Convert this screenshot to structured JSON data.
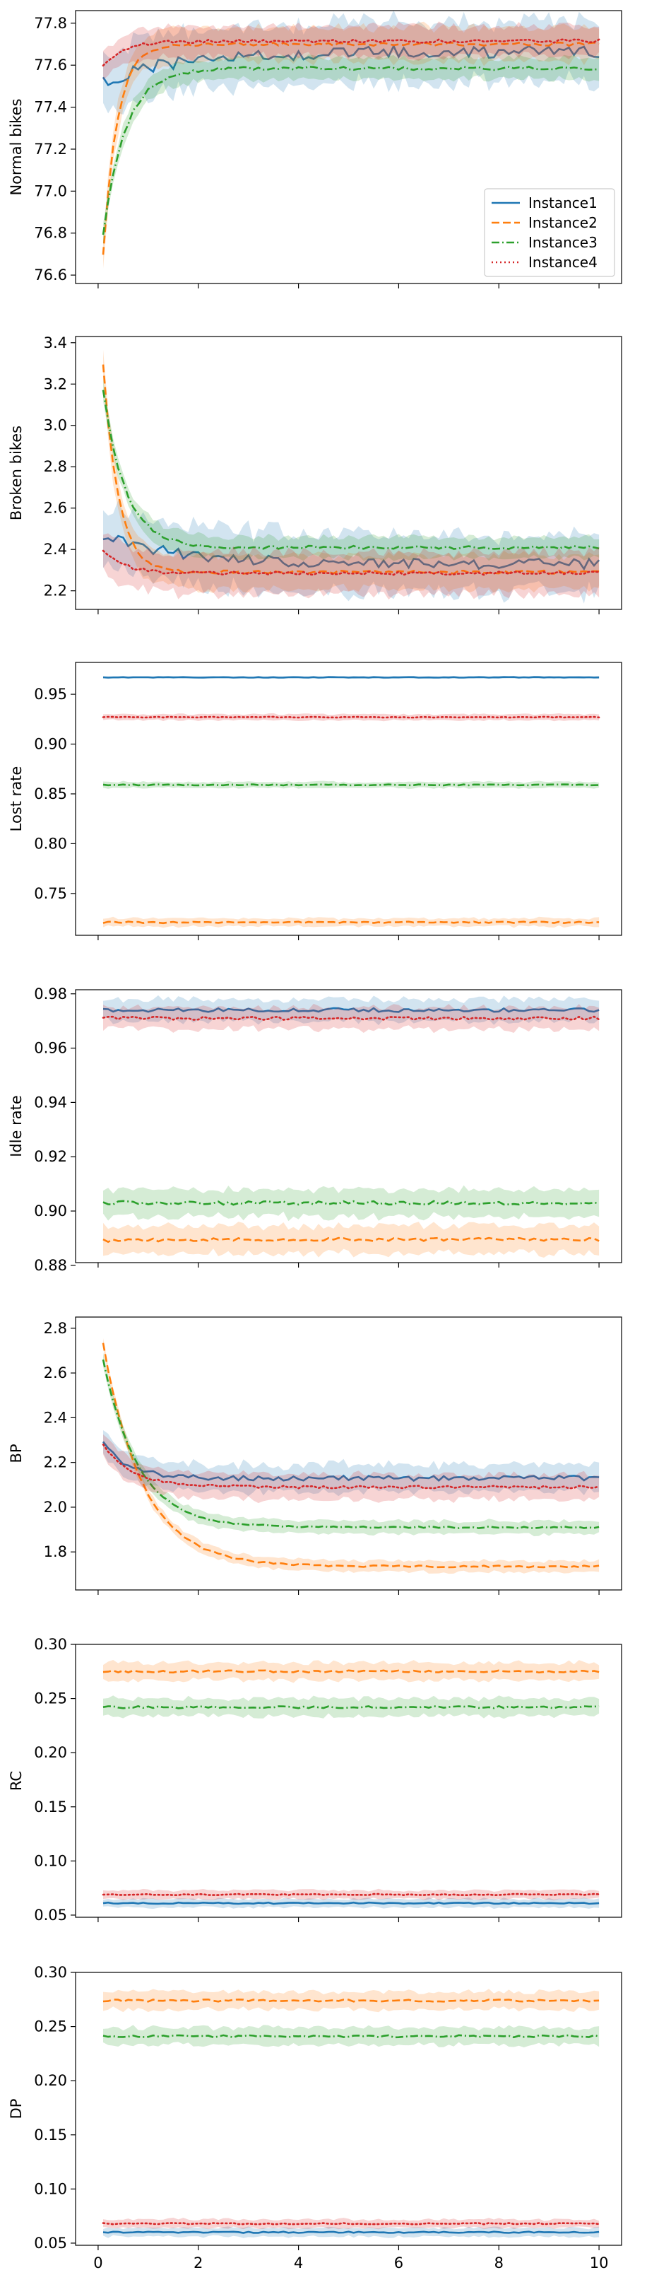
{
  "series_styles": [
    {
      "name": "Instance1",
      "color": "#1f77b4",
      "dash": "solid"
    },
    {
      "name": "Instance2",
      "color": "#ff7f0e",
      "dash": "dashed"
    },
    {
      "name": "Instance3",
      "color": "#2ca02c",
      "dash": "dashdot"
    },
    {
      "name": "Instance4",
      "color": "#d62728",
      "dash": "dotted"
    }
  ],
  "x_ticks": [
    "0",
    "2",
    "4",
    "6",
    "8",
    "10"
  ],
  "chart_data": [
    {
      "type": "line",
      "ylabel": "Normal bikes",
      "xlim": [
        0,
        10
      ],
      "ylim": [
        76.56,
        77.86
      ],
      "yticks": [
        "76.6",
        "76.8",
        "77.0",
        "77.2",
        "77.4",
        "77.6",
        "77.8"
      ],
      "show_xtick_labels": false,
      "legend": "bottom-right",
      "series": [
        {
          "name": "Instance1",
          "start": 77.52,
          "plateau": 77.665,
          "tau": 1.5,
          "band": 0.14,
          "noise": 0.03
        },
        {
          "name": "Instance2",
          "start": 76.7,
          "plateau": 77.7,
          "tau": 0.28,
          "band": 0.08,
          "noise": 0.008
        },
        {
          "name": "Instance3",
          "start": 76.8,
          "plateau": 77.585,
          "tau": 0.45,
          "band": 0.05,
          "noise": 0.008
        },
        {
          "name": "Instance4",
          "start": 77.6,
          "plateau": 77.715,
          "tau": 0.4,
          "band": 0.07,
          "noise": 0.008
        }
      ]
    },
    {
      "type": "line",
      "ylabel": "Broken bikes",
      "xlim": [
        0,
        10
      ],
      "ylim": [
        2.11,
        3.43
      ],
      "yticks": [
        "2.2",
        "2.4",
        "2.6",
        "2.8",
        "3.0",
        "3.2",
        "3.4"
      ],
      "show_xtick_labels": false,
      "series": [
        {
          "name": "Instance1",
          "start": 2.47,
          "plateau": 2.33,
          "tau": 1.5,
          "band": 0.14,
          "noise": 0.025
        },
        {
          "name": "Instance2",
          "start": 3.3,
          "plateau": 2.29,
          "tau": 0.3,
          "band": 0.08,
          "noise": 0.008
        },
        {
          "name": "Instance3",
          "start": 3.17,
          "plateau": 2.41,
          "tau": 0.45,
          "band": 0.05,
          "noise": 0.008
        },
        {
          "name": "Instance4",
          "start": 2.4,
          "plateau": 2.285,
          "tau": 0.4,
          "band": 0.1,
          "noise": 0.008
        }
      ]
    },
    {
      "type": "line",
      "ylabel": "Lost rate",
      "xlim": [
        0,
        10
      ],
      "ylim": [
        0.708,
        0.982
      ],
      "yticks": [
        "0.75",
        "0.80",
        "0.85",
        "0.90",
        "0.95"
      ],
      "show_xtick_labels": false,
      "series": [
        {
          "name": "Instance1",
          "start": 0.967,
          "plateau": 0.967,
          "tau": 1,
          "band": 0.001,
          "noise": 0.0003
        },
        {
          "name": "Instance2",
          "start": 0.721,
          "plateau": 0.721,
          "tau": 1,
          "band": 0.004,
          "noise": 0.0008
        },
        {
          "name": "Instance3",
          "start": 0.859,
          "plateau": 0.859,
          "tau": 1,
          "band": 0.003,
          "noise": 0.0005
        },
        {
          "name": "Instance4",
          "start": 0.927,
          "plateau": 0.927,
          "tau": 1,
          "band": 0.003,
          "noise": 0.0004
        }
      ]
    },
    {
      "type": "line",
      "ylabel": "Idle rate",
      "xlim": [
        0,
        10
      ],
      "ylim": [
        0.881,
        0.9815
      ],
      "yticks": [
        "0.88",
        "0.90",
        "0.92",
        "0.94",
        "0.96",
        "0.98"
      ],
      "show_xtick_labels": false,
      "series": [
        {
          "name": "Instance1",
          "start": 0.974,
          "plateau": 0.974,
          "tau": 1,
          "band": 0.004,
          "noise": 0.0007
        },
        {
          "name": "Instance2",
          "start": 0.889,
          "plateau": 0.8895,
          "tau": 1,
          "band": 0.005,
          "noise": 0.0006
        },
        {
          "name": "Instance3",
          "start": 0.903,
          "plateau": 0.903,
          "tau": 1,
          "band": 0.005,
          "noise": 0.0007
        },
        {
          "name": "Instance4",
          "start": 0.971,
          "plateau": 0.971,
          "tau": 1,
          "band": 0.004,
          "noise": 0.0006
        }
      ]
    },
    {
      "type": "line",
      "ylabel": "BP",
      "xlim": [
        0,
        10
      ],
      "ylim": [
        1.63,
        2.85
      ],
      "yticks": [
        "1.8",
        "2.0",
        "2.2",
        "2.4",
        "2.6",
        "2.8"
      ],
      "show_xtick_labels": false,
      "series": [
        {
          "name": "Instance1",
          "start": 2.29,
          "plateau": 2.13,
          "tau": 0.5,
          "band": 0.06,
          "noise": 0.012
        },
        {
          "name": "Instance2",
          "start": 2.73,
          "plateau": 1.735,
          "tau": 0.8,
          "band": 0.025,
          "noise": 0.004
        },
        {
          "name": "Instance3",
          "start": 2.66,
          "plateau": 1.91,
          "tau": 0.7,
          "band": 0.03,
          "noise": 0.004
        },
        {
          "name": "Instance4",
          "start": 2.28,
          "plateau": 2.09,
          "tau": 0.6,
          "band": 0.055,
          "noise": 0.006
        }
      ]
    },
    {
      "type": "line",
      "ylabel": "RC",
      "xlim": [
        0,
        10
      ],
      "ylim": [
        0.048,
        0.3
      ],
      "yticks": [
        "0.05",
        "0.10",
        "0.15",
        "0.20",
        "0.25",
        "0.30"
      ],
      "show_xtick_labels": false,
      "series": [
        {
          "name": "Instance1",
          "start": 0.061,
          "plateau": 0.061,
          "tau": 1,
          "band": 0.004,
          "noise": 0.0006
        },
        {
          "name": "Instance2",
          "start": 0.275,
          "plateau": 0.275,
          "tau": 1,
          "band": 0.008,
          "noise": 0.001
        },
        {
          "name": "Instance3",
          "start": 0.242,
          "plateau": 0.242,
          "tau": 1,
          "band": 0.008,
          "noise": 0.001
        },
        {
          "name": "Instance4",
          "start": 0.069,
          "plateau": 0.069,
          "tau": 1,
          "band": 0.004,
          "noise": 0.0006
        }
      ]
    },
    {
      "type": "line",
      "ylabel": "DP",
      "xlim": [
        0,
        10
      ],
      "ylim": [
        0.048,
        0.3
      ],
      "yticks": [
        "0.05",
        "0.10",
        "0.15",
        "0.20",
        "0.25",
        "0.30"
      ],
      "show_xtick_labels": true,
      "series": [
        {
          "name": "Instance1",
          "start": 0.06,
          "plateau": 0.06,
          "tau": 1,
          "band": 0.004,
          "noise": 0.0006
        },
        {
          "name": "Instance2",
          "start": 0.274,
          "plateau": 0.274,
          "tau": 1,
          "band": 0.008,
          "noise": 0.001
        },
        {
          "name": "Instance3",
          "start": 0.241,
          "plateau": 0.241,
          "tau": 1,
          "band": 0.008,
          "noise": 0.001
        },
        {
          "name": "Instance4",
          "start": 0.068,
          "plateau": 0.068,
          "tau": 1,
          "band": 0.004,
          "noise": 0.0006
        }
      ]
    }
  ]
}
